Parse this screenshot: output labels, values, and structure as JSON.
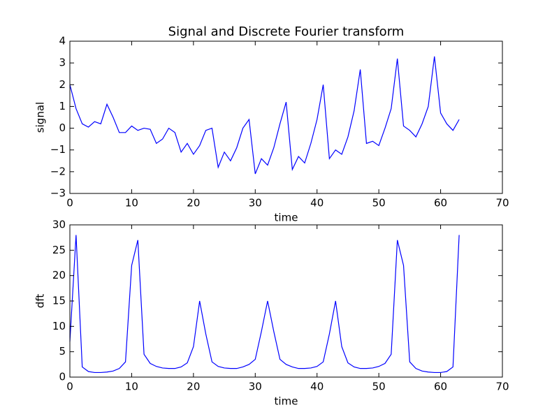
{
  "chart_data": [
    {
      "type": "line",
      "title": "Signal and Discrete Fourier transform",
      "xlabel": "time",
      "ylabel": "signal",
      "color": "#0000ff",
      "x": [
        0,
        1,
        2,
        3,
        4,
        5,
        6,
        7,
        8,
        9,
        10,
        11,
        12,
        13,
        14,
        15,
        16,
        17,
        18,
        19,
        20,
        21,
        22,
        23,
        24,
        25,
        26,
        27,
        28,
        29,
        30,
        31,
        32,
        33,
        34,
        35,
        36,
        37,
        38,
        39,
        40,
        41,
        42,
        43,
        44,
        45,
        46,
        47,
        48,
        49,
        50,
        51,
        52,
        53,
        54,
        55,
        56,
        57,
        58,
        59,
        60,
        61,
        62,
        63
      ],
      "values": [
        2.0,
        0.9,
        0.2,
        0.05,
        0.3,
        0.2,
        1.1,
        0.5,
        -0.2,
        -0.2,
        0.1,
        -0.1,
        0.0,
        -0.05,
        -0.7,
        -0.5,
        0.0,
        -0.2,
        -1.1,
        -0.7,
        -1.2,
        -0.8,
        -0.1,
        0.0,
        -1.8,
        -1.1,
        -1.5,
        -0.9,
        0.0,
        0.4,
        -2.1,
        -1.4,
        -1.7,
        -0.9,
        0.2,
        1.2,
        -1.9,
        -1.3,
        -1.6,
        -0.7,
        0.4,
        2.0,
        -1.4,
        -1.0,
        -1.2,
        -0.4,
        0.8,
        2.7,
        -0.7,
        -0.6,
        -0.8,
        0.0,
        0.9,
        3.2,
        0.1,
        -0.1,
        -0.4,
        0.2,
        1.0,
        3.3,
        0.7,
        0.2,
        -0.1,
        0.4
      ],
      "xlim": [
        0,
        70
      ],
      "xticks": [
        0,
        10,
        20,
        30,
        40,
        50,
        60,
        70
      ],
      "ylim": [
        -3,
        4
      ],
      "yticks": [
        {
          "value": -3,
          "label": "−3"
        },
        {
          "value": -2,
          "label": "−2"
        },
        {
          "value": -1,
          "label": "−1"
        },
        0,
        1,
        2,
        3,
        4
      ]
    },
    {
      "type": "line",
      "xlabel": "time",
      "ylabel": "dft",
      "color": "#0000ff",
      "x": [
        0,
        1,
        2,
        3,
        4,
        5,
        6,
        7,
        8,
        9,
        10,
        11,
        12,
        13,
        14,
        15,
        16,
        17,
        18,
        19,
        20,
        21,
        22,
        23,
        24,
        25,
        26,
        27,
        28,
        29,
        30,
        31,
        32,
        33,
        34,
        35,
        36,
        37,
        38,
        39,
        40,
        41,
        42,
        43,
        44,
        45,
        46,
        47,
        48,
        49,
        50,
        51,
        52,
        53,
        54,
        55,
        56,
        57,
        58,
        59,
        60,
        61,
        62,
        63
      ],
      "values": [
        7,
        28,
        2,
        1.1,
        0.9,
        0.9,
        1.0,
        1.2,
        1.7,
        3,
        22,
        27,
        4.5,
        2.7,
        2.1,
        1.8,
        1.7,
        1.7,
        2.0,
        2.8,
        6,
        15,
        8.5,
        3,
        2.1,
        1.8,
        1.7,
        1.7,
        2.0,
        2.5,
        3.5,
        9,
        15,
        9,
        3.5,
        2.5,
        2.0,
        1.7,
        1.7,
        1.8,
        2.1,
        3,
        8.5,
        15,
        6,
        2.8,
        2.0,
        1.7,
        1.7,
        1.8,
        2.1,
        2.7,
        4.5,
        27,
        22,
        3,
        1.7,
        1.2,
        1.0,
        0.9,
        0.9,
        1.1,
        2,
        28
      ],
      "xlim": [
        0,
        70
      ],
      "xticks": [
        0,
        10,
        20,
        30,
        40,
        50,
        60,
        70
      ],
      "ylim": [
        0,
        30
      ],
      "yticks": [
        0,
        5,
        10,
        15,
        20,
        25,
        30
      ]
    }
  ]
}
